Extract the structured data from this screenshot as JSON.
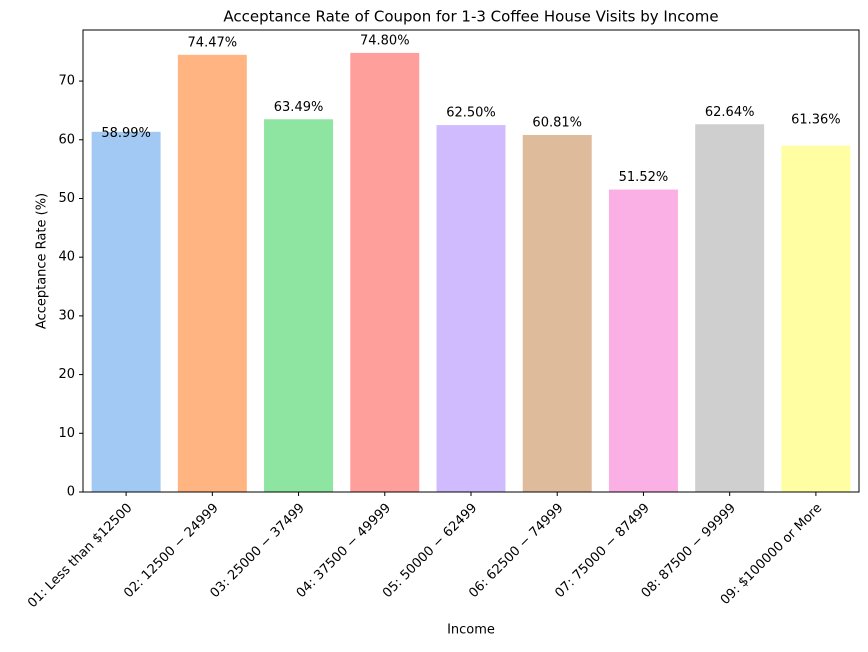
{
  "chart_data": {
    "type": "bar",
    "title": "Acceptance Rate of Coupon for 1-3 Coffee House Visits by Income",
    "x_label": "Income",
    "y_label": "Acceptance Rate (%)",
    "categories": [
      "01: Less than $12500",
      "02: 12500 − 24999",
      "03: 25000 − 37499",
      "04: 37500 − 49999",
      "05: 50000 − 62499",
      "06: 62500 − 74999",
      "07: 75000 − 87499",
      "08: 87500 − 99999",
      "09: $100000 or More"
    ],
    "values": [
      61.36,
      74.47,
      63.49,
      74.8,
      62.5,
      60.81,
      51.52,
      62.64,
      58.99
    ],
    "colors": [
      "#a1c9f4",
      "#ffb482",
      "#8de5a1",
      "#ff9f9b",
      "#d0bbff",
      "#debb9b",
      "#fab0e4",
      "#cfcfcf",
      "#fffea3"
    ],
    "annotations": [
      {
        "value": 58.99,
        "label": "58.99%"
      },
      {
        "value": 74.47,
        "label": "74.47%"
      },
      {
        "value": 63.49,
        "label": "63.49%"
      },
      {
        "value": 74.8,
        "label": "74.80%"
      },
      {
        "value": 62.5,
        "label": "62.50%"
      },
      {
        "value": 60.81,
        "label": "60.81%"
      },
      {
        "value": 51.52,
        "label": "51.52%"
      },
      {
        "value": 62.64,
        "label": "62.64%"
      },
      {
        "value": 61.36,
        "label": "61.36%"
      }
    ],
    "ylim": [
      0,
      78.7
    ],
    "yticks": [
      0,
      10,
      20,
      30,
      40,
      50,
      60,
      70
    ]
  }
}
